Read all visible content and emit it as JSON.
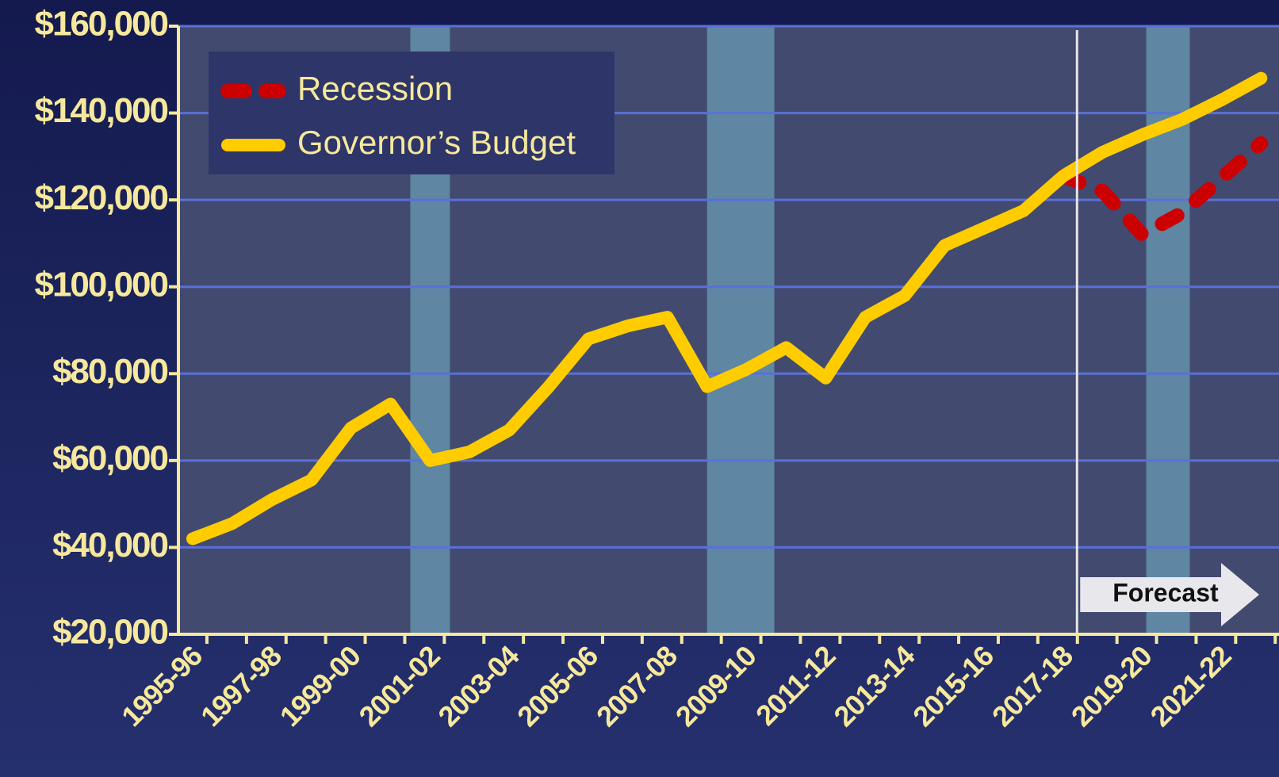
{
  "chart_data": {
    "type": "line",
    "categories": [
      "1995-96",
      null,
      "1997-98",
      null,
      "1999-00",
      null,
      "2001-02",
      null,
      "2003-04",
      null,
      "2005-06",
      null,
      "2007-08",
      null,
      "2009-10",
      null,
      "2011-12",
      null,
      "2013-14",
      null,
      "2015-16",
      null,
      "2017-18",
      null,
      "2019-20",
      null,
      "2021-22",
      null
    ],
    "series": [
      {
        "name": "Recession",
        "color": "#cc0000",
        "dashed": true,
        "values": [
          null,
          null,
          null,
          null,
          null,
          null,
          null,
          null,
          null,
          null,
          null,
          null,
          null,
          null,
          null,
          null,
          null,
          null,
          null,
          null,
          null,
          null,
          125500,
          122000,
          112000,
          117000,
          125000,
          133000
        ]
      },
      {
        "name": "Governor’s Budget",
        "color": "#ffcc00",
        "dashed": false,
        "values": [
          42000,
          45500,
          51000,
          55500,
          67500,
          73000,
          60000,
          62000,
          67000,
          77000,
          88000,
          91000,
          93000,
          77000,
          81000,
          86000,
          79000,
          93000,
          98000,
          109500,
          113500,
          117500,
          125500,
          131000,
          135000,
          138500,
          143000,
          148000
        ]
      }
    ],
    "ylim": [
      20000,
      160000
    ],
    "yticks": [
      {
        "value": 20000,
        "label": "$20,000"
      },
      {
        "value": 40000,
        "label": "$40,000"
      },
      {
        "value": 60000,
        "label": "$60,000"
      },
      {
        "value": 80000,
        "label": "$80,000"
      },
      {
        "value": 100000,
        "label": "$100,000"
      },
      {
        "value": 120000,
        "label": "$120,000"
      },
      {
        "value": 140000,
        "label": "$140,000"
      },
      {
        "value": 160000,
        "label": "$160,000"
      }
    ],
    "grid": true,
    "legend": "upper left",
    "shaded_periods": [
      [
        5.5,
        6.5
      ],
      [
        13,
        14.7
      ],
      [
        24.1,
        25.2
      ]
    ],
    "forecast_start": 22.35,
    "forecast_label": "Forecast"
  }
}
